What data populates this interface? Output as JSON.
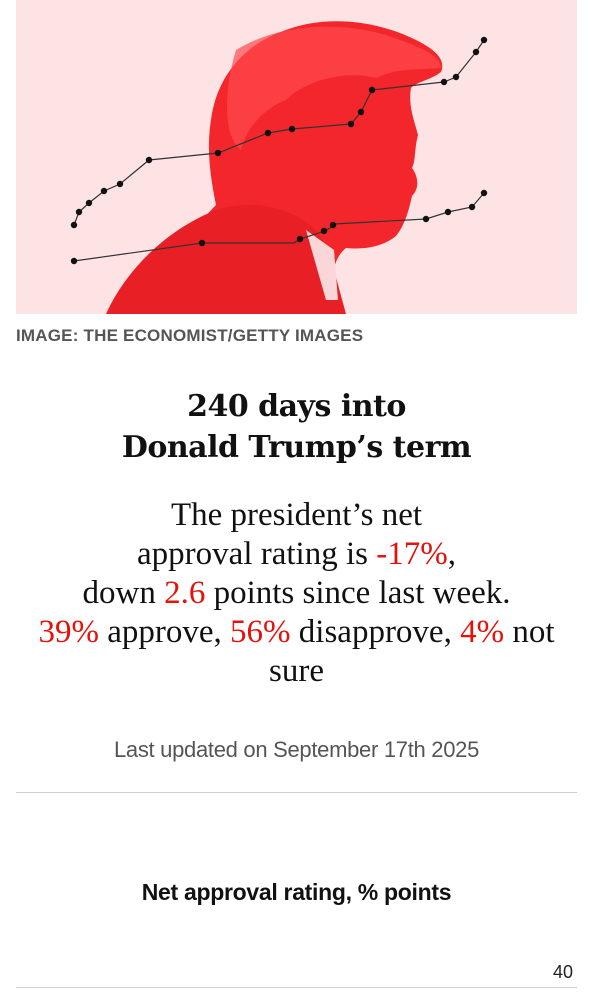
{
  "image": {
    "description_icon": "portrait-with-trend-lines",
    "credit": "IMAGE: THE ECONOMIST/GETTY IMAGES",
    "tint_color": "#f2262b",
    "background_color": "#fde3e4"
  },
  "headline": {
    "line1": "240 days into",
    "line2": "Donald Trump’s term"
  },
  "summary": {
    "p1": "The president’s net",
    "p2": "approval rating is ",
    "net_value": "-17%",
    "p3": ",",
    "p4": "down ",
    "change_value": "2.6",
    "p5": " points since last week.",
    "approve_value": "39%",
    "approve_label": " approve, ",
    "disapprove_value": "56%",
    "disapprove_label": " disapprove, ",
    "notsure_value": "4%",
    "notsure_label": " not sure"
  },
  "updated": "Last updated on September 17th 2025",
  "chart": {
    "title": "Net approval rating, % points",
    "top_tick": "40"
  },
  "colors": {
    "accent_red": "#e3120b",
    "muted_text": "#555555"
  }
}
